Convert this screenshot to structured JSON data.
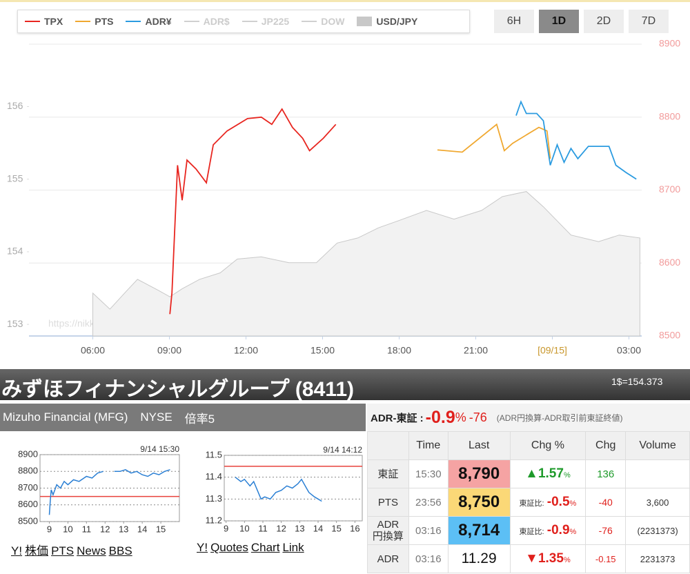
{
  "range_buttons": {
    "labels": [
      "6H",
      "1D",
      "2D",
      "7D"
    ],
    "active": 1
  },
  "chart_data": [
    {
      "type": "line",
      "watermark": "https://nikke225jp.com/adr/",
      "xlim": [
        3.5,
        27.5
      ],
      "xticks": [
        {
          "value": 6,
          "label": "06:00"
        },
        {
          "value": 9,
          "label": "09:00"
        },
        {
          "value": 12,
          "label": "12:00"
        },
        {
          "value": 15,
          "label": "15:00"
        },
        {
          "value": 18,
          "label": "18:00"
        },
        {
          "value": 21,
          "label": "21:00"
        },
        {
          "value": 24,
          "label": "[09/15]",
          "color": "#c8962a"
        },
        {
          "value": 27,
          "label": "03:00"
        }
      ],
      "ylim": [
        8500,
        8900
      ],
      "yticks": [
        8500,
        8600,
        8700,
        8800,
        8900
      ],
      "y2lim": [
        152.84,
        156.86
      ],
      "y2ticks": [
        153,
        154,
        155,
        156
      ],
      "grid": true,
      "series": [
        {
          "name": "TPX",
          "color": "#e8251f",
          "visible": true,
          "x": [
            9.02,
            9.1,
            9.32,
            9.5,
            9.69,
            10.04,
            10.45,
            10.72,
            11.26,
            12.06,
            12.6,
            13.01,
            13.41,
            13.82,
            14.22,
            14.49,
            15.03,
            15.52
          ],
          "values": [
            8530,
            8559,
            8734,
            8686,
            8741,
            8729,
            8710,
            8762,
            8781,
            8798,
            8800,
            8790,
            8811,
            8786,
            8771,
            8754,
            8771,
            8790
          ]
        },
        {
          "name": "PTS",
          "color": "#f0a830",
          "visible": true,
          "x": [
            19.5,
            20.47,
            21.82,
            22.12,
            22.44,
            23.47,
            23.79,
            23.92
          ],
          "values": [
            8755,
            8752,
            8790,
            8754,
            8764,
            8786,
            8781,
            8743
          ]
        },
        {
          "name": "ADR¥",
          "color": "#2b9be0",
          "visible": true,
          "x": [
            22.58,
            22.77,
            22.98,
            23.39,
            23.65,
            23.92,
            24.19,
            24.46,
            24.73,
            25.0,
            25.41,
            26.22,
            26.49,
            26.89,
            27.29
          ],
          "values": [
            8802,
            8821,
            8805,
            8805,
            8795,
            8734,
            8762,
            8738,
            8757,
            8743,
            8760,
            8760,
            8734,
            8724,
            8715
          ]
        },
        {
          "name": "ADR$",
          "color": "#d0d0d0",
          "visible": false,
          "x": [],
          "values": []
        },
        {
          "name": "JP225",
          "color": "#d0d0d0",
          "visible": false,
          "x": [],
          "values": []
        },
        {
          "name": "DOW",
          "color": "#d0d0d0",
          "visible": false,
          "x": [],
          "values": []
        },
        {
          "name": "USD/JPY",
          "color": "#c8c8c8",
          "visible": true,
          "fill": true,
          "axis": "y2",
          "x": [
            6.0,
            6.67,
            7.35,
            7.75,
            8.56,
            9.02,
            9.5,
            10.18,
            10.99,
            11.66,
            12.6,
            13.68,
            14.76,
            15.57,
            16.38,
            17.19,
            17.99,
            19.07,
            20.15,
            21.23,
            22.04,
            22.98,
            23.65,
            24.73,
            25.81,
            26.62,
            27.43
          ],
          "values": [
            153.43,
            153.21,
            153.47,
            153.62,
            153.47,
            153.38,
            153.49,
            153.62,
            153.71,
            153.9,
            153.93,
            153.85,
            153.85,
            154.12,
            154.19,
            154.33,
            154.43,
            154.57,
            154.45,
            154.57,
            154.76,
            154.83,
            154.62,
            154.23,
            154.14,
            154.23,
            154.19
          ]
        }
      ]
    },
    {
      "type": "line",
      "timestamp": "9/14 15:30",
      "color": "#2a7fd4",
      "reference": 8650,
      "reference_color": "#e8403a",
      "grid": "dotted",
      "xlim": [
        8.5,
        16
      ],
      "xticks": [
        9,
        10,
        11,
        12,
        13,
        14,
        15
      ],
      "ylim": [
        8500,
        8900
      ],
      "yticks": [
        8500,
        8600,
        8700,
        8800,
        8900
      ],
      "x": [
        9.0,
        9.05,
        9.1,
        9.2,
        9.4,
        9.6,
        9.8,
        10.0,
        10.3,
        10.6,
        11.0,
        11.3,
        11.6,
        11.9,
        12.2,
        12.5,
        12.8,
        13.1,
        13.4,
        13.7,
        14.0,
        14.3,
        14.6,
        14.9,
        15.2,
        15.5
      ],
      "values": [
        8540,
        8620,
        8690,
        8660,
        8720,
        8700,
        8740,
        8720,
        8750,
        8740,
        8770,
        8760,
        8790,
        8800,
        null,
        8800,
        8800,
        8810,
        8790,
        8800,
        8780,
        8770,
        8790,
        8780,
        8800,
        8810
      ]
    },
    {
      "type": "line",
      "timestamp": "9/14 14:12",
      "color": "#2a7fd4",
      "reference": 11.45,
      "reference_color": "#e8403a",
      "grid": "dotted",
      "xlim": [
        8.9,
        16.4
      ],
      "xticks": [
        9,
        10,
        11,
        12,
        13,
        14,
        15,
        16
      ],
      "ylim": [
        11.2,
        11.5
      ],
      "yticks": [
        11.2,
        11.3,
        11.4,
        11.5
      ],
      "x": [
        9.5,
        9.8,
        10.0,
        10.3,
        10.5,
        10.7,
        10.9,
        11.1,
        11.4,
        11.7,
        12.0,
        12.3,
        12.6,
        12.9,
        13.1,
        13.3,
        13.5,
        13.8,
        14.0,
        14.2
      ],
      "values": [
        11.4,
        11.38,
        11.39,
        11.36,
        11.38,
        11.34,
        11.3,
        11.31,
        11.3,
        11.33,
        11.34,
        11.36,
        11.35,
        11.37,
        11.39,
        11.36,
        11.33,
        11.31,
        11.3,
        11.29
      ]
    }
  ],
  "stock": {
    "title": "みずほフィナンシャルグループ (8411)",
    "rate": "1$=154.373",
    "subtitle": [
      "Mizuho Financial (MFG)",
      "NYSE",
      "倍率5"
    ],
    "diff_label": "ADR-東証 :",
    "diff_pct": "-0.9",
    "diff_unit": "%",
    "diff_value": "-76",
    "diff_note": "(ADR円換算-ADR取引前東証終値)"
  },
  "links": {
    "left": [
      "Y!",
      "株価",
      "PTS",
      "News",
      "BBS"
    ],
    "right": [
      "Y!",
      "Quotes",
      "Chart",
      "Link"
    ]
  },
  "table": {
    "header": [
      "Time",
      "Last",
      "Chg %",
      "Chg",
      "Volume"
    ],
    "rows": [
      {
        "name": "東証",
        "time": "15:30",
        "last": "8,790",
        "pct": "▲1.57",
        "unit": "%",
        "chg": "136"
      },
      {
        "name": "PTS",
        "time": "23:56",
        "last": "8,750",
        "prefix": "東証比:",
        "pct": "-0.5",
        "unit": "%",
        "chg": "-40",
        "volume": "3,600"
      },
      {
        "name": "ADR\n円換算",
        "time": "03:16",
        "last": "8,714",
        "prefix": "東証比:",
        "pct": "-0.9",
        "unit": "%",
        "chg": "-76",
        "volume": "(2231373)"
      },
      {
        "name": "ADR",
        "time": "03:16",
        "last": "11.29",
        "pct": "▼1.35",
        "unit": "%",
        "chg": "-0.15",
        "volume": "2231373"
      }
    ]
  }
}
